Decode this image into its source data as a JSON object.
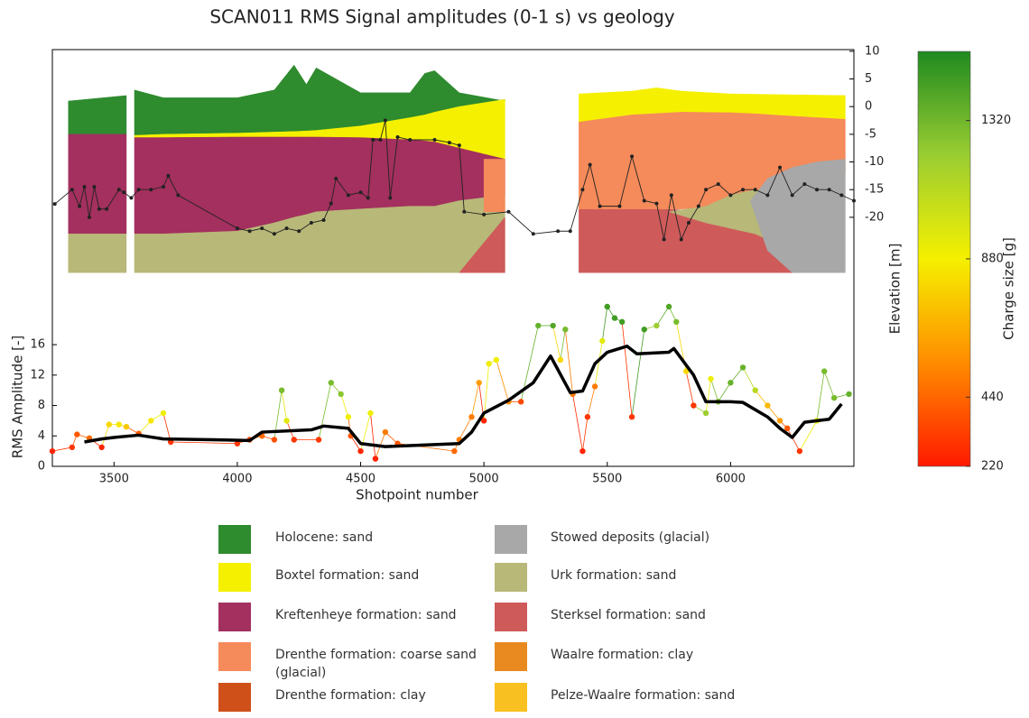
{
  "chart_data": {
    "type": "geology-section",
    "title": "SCAN011 RMS Signal amplitudes (0-1 s) vs geology",
    "xlabel": "Shotpoint number",
    "ylabel": "RMS Amplitude [-]",
    "y2label": "Elevation [m]",
    "colorbar_label": "Charge size [g]",
    "xlim": [
      3250,
      6500
    ],
    "xticks": [
      3500,
      4000,
      4500,
      5000,
      5500,
      6000
    ],
    "ylim": [
      0,
      54.8
    ],
    "yticks": [
      0,
      4,
      8,
      12,
      16
    ],
    "y2lim": [
      -65,
      10.3
    ],
    "y2ticks": [
      10,
      5,
      0,
      -5,
      -10,
      -15,
      -20
    ],
    "clim": [
      220,
      1540
    ],
    "cticks": [
      220,
      440,
      880,
      1320
    ],
    "colormap": [
      "#ff1a00",
      "#ff8c00",
      "#f5f000",
      "#9acd32",
      "#1f8a1f"
    ],
    "geology": [
      {
        "color": "#2e8b2e",
        "x": [
          3315,
          3550
        ],
        "top": [
          1,
          2
        ],
        "bottom": [
          -5,
          -5
        ]
      },
      {
        "color": "#a3305e",
        "x": [
          3315,
          3550
        ],
        "top": [
          -5,
          -5
        ],
        "bottom": [
          -23,
          -23
        ]
      },
      {
        "color": "#b8b878",
        "x": [
          3315,
          3550
        ],
        "top": [
          -23,
          -23
        ],
        "bottom": [
          -30,
          -30
        ]
      },
      {
        "color": "#2e8b2e",
        "x": [
          3583,
          3700,
          4000,
          4150,
          4230,
          4280,
          4320,
          4500,
          4700,
          4760,
          4800,
          4900,
          5085
        ],
        "top": [
          3,
          1.6,
          1.6,
          3,
          7.5,
          4,
          7,
          2.5,
          2.5,
          6,
          6.5,
          2.5,
          1
        ],
        "bottom": [
          -5.2,
          -5,
          -4.8,
          -4.6,
          -4.5,
          -4.4,
          -4.3,
          -3.5,
          -2,
          -1.5,
          -1,
          0,
          1.3
        ]
      },
      {
        "color": "#f5f000",
        "x": [
          3583,
          3700,
          4000,
          4150,
          4230,
          4280,
          4320,
          4500,
          4700,
          4760,
          4800,
          4900,
          5085
        ],
        "top": [
          -5.2,
          -5,
          -4.8,
          -4.6,
          -4.5,
          -4.4,
          -4.3,
          -3.5,
          -2,
          -1.5,
          -1,
          0,
          1.3
        ],
        "bottom": [
          -5.6,
          -5.6,
          -5.5,
          -5.5,
          -5.5,
          -5.5,
          -5.5,
          -5.6,
          -6,
          -6.2,
          -6.4,
          -7.5,
          -9.5
        ]
      },
      {
        "color": "#a3305e",
        "x": [
          3583,
          3700,
          4000,
          4150,
          4230,
          4280,
          4320,
          4500,
          4700,
          4760,
          4800,
          4900,
          5085
        ],
        "top": [
          -5.6,
          -5.6,
          -5.5,
          -5.5,
          -5.5,
          -5.5,
          -5.5,
          -5.6,
          -6,
          -6.2,
          -6.4,
          -7.5,
          -9.5
        ],
        "bottom": [
          -23,
          -23,
          -22.5,
          -21,
          -20,
          -19.5,
          -19,
          -18.5,
          -18,
          -18,
          -18,
          -17,
          -16
        ]
      },
      {
        "color": "#b8b878",
        "x": [
          3583,
          3700,
          4000,
          4150,
          4230,
          4280,
          4320,
          4500,
          4700,
          4760,
          4800,
          4900,
          5085
        ],
        "top": [
          -23,
          -23,
          -22.5,
          -21,
          -20,
          -19.5,
          -19,
          -18.5,
          -18,
          -18,
          -18,
          -17,
          -16
        ],
        "bottom": [
          -30,
          -30,
          -30,
          -30,
          -30,
          -30,
          -30,
          -30,
          -30,
          -30,
          -30,
          -30,
          -30
        ]
      },
      {
        "color": "#f58a5a",
        "x": [
          5000,
          5085
        ],
        "top": [
          -9.5,
          -9.5
        ],
        "bottom": [
          -19,
          -19
        ]
      },
      {
        "color": "#cf5a5a",
        "x": [
          4900,
          5085
        ],
        "top": [
          -30,
          -20
        ],
        "bottom": [
          -30,
          -30
        ]
      },
      {
        "color": "#f5f000",
        "x": [
          5385,
          5600,
          5700,
          5800,
          6000,
          6465
        ],
        "top": [
          2.3,
          2.8,
          3.4,
          2.8,
          2.3,
          2
        ],
        "bottom": [
          -2.8,
          -1.5,
          -1.2,
          -1,
          -1.1,
          -2.3
        ]
      },
      {
        "color": "#cf5a5a",
        "x": [
          5385,
          5700,
          6000,
          6200,
          6300
        ],
        "top": [
          -18.5,
          -18.5,
          -19,
          -22,
          -30
        ],
        "bottom": [
          -30,
          -30,
          -30,
          -30,
          -30
        ]
      },
      {
        "color": "#f58a5a",
        "x": [
          5385,
          5600,
          5800,
          6000,
          6100,
          6200,
          6465
        ],
        "top": [
          -2.8,
          -1.5,
          -1,
          -1.1,
          -1.3,
          -1.6,
          -2.3
        ],
        "bottom": [
          -18.5,
          -18.5,
          -18.5,
          -18,
          -17,
          -15,
          -12
        ]
      },
      {
        "color": "#b8b878",
        "x": [
          5750,
          5900,
          6000,
          6100,
          6200,
          6300
        ],
        "top": [
          -19,
          -18,
          -16,
          -15,
          -17,
          -30
        ],
        "bottom": [
          -19,
          -21,
          -22,
          -23,
          -25,
          -30
        ]
      },
      {
        "color": "#a8a8a8",
        "x": [
          6080,
          6150,
          6250,
          6350,
          6465
        ],
        "top": [
          -17,
          -13,
          -11,
          -10,
          -9.5
        ],
        "bottom": [
          -17,
          -26,
          -30,
          -30,
          -30
        ]
      }
    ],
    "elevation_series": {
      "color": "#222222",
      "axis": "y2",
      "x": [
        3260,
        3330,
        3360,
        3380,
        3400,
        3420,
        3440,
        3470,
        3520,
        3540,
        3570,
        3600,
        3650,
        3700,
        3720,
        3760,
        4000,
        4050,
        4100,
        4150,
        4200,
        4250,
        4300,
        4350,
        4380,
        4400,
        4450,
        4500,
        4530,
        4550,
        4580,
        4600,
        4620,
        4650,
        4700,
        4800,
        4860,
        4900,
        4920,
        5000,
        5100,
        5200,
        5300,
        5350,
        5400,
        5430,
        5470,
        5550,
        5600,
        5650,
        5700,
        5730,
        5760,
        5800,
        5830,
        5870,
        5900,
        5950,
        6000,
        6050,
        6100,
        6150,
        6200,
        6250,
        6300,
        6350,
        6400,
        6450,
        6500
      ],
      "values": [
        -17.6,
        -15,
        -18,
        -14.5,
        -20,
        -14.5,
        -18.5,
        -18.5,
        -15,
        -15.5,
        -16.5,
        -15,
        -15,
        -14.5,
        -12.5,
        -16,
        -22,
        -22.5,
        -22,
        -23,
        -22,
        -22.5,
        -21,
        -20.5,
        -17.5,
        -13,
        -16,
        -15.5,
        -16.5,
        -6,
        -6,
        -2.5,
        -16.5,
        -5.5,
        -6,
        -6,
        -6.5,
        -7,
        -19,
        -19.5,
        -19,
        -23,
        -22.5,
        -22.5,
        -15,
        -10.5,
        -18,
        -18,
        -9,
        -17,
        -17.5,
        -24,
        -16,
        -24,
        -21,
        -18,
        -15,
        -14,
        -16,
        -15,
        -15,
        -16,
        -11,
        -16,
        -14,
        -15,
        -15,
        -16,
        -17
      ]
    },
    "rms_points": {
      "x": [
        3250,
        3330,
        3350,
        3400,
        3450,
        3480,
        3520,
        3550,
        3600,
        3650,
        3700,
        3730,
        4000,
        4050,
        4100,
        4150,
        4180,
        4200,
        4230,
        4330,
        4380,
        4420,
        4450,
        4460,
        4500,
        4540,
        4560,
        4600,
        4650,
        4880,
        4900,
        4950,
        4980,
        5000,
        5020,
        5050,
        5100,
        5150,
        5220,
        5280,
        5310,
        5330,
        5360,
        5400,
        5420,
        5450,
        5480,
        5500,
        5530,
        5560,
        5600,
        5650,
        5700,
        5750,
        5780,
        5820,
        5850,
        5900,
        5920,
        5950,
        6000,
        6050,
        6100,
        6150,
        6200,
        6230,
        6280,
        6350,
        6380,
        6420,
        6480
      ],
      "values": [
        2.0,
        2.5,
        4.2,
        3.7,
        2.5,
        5.5,
        5.5,
        5.2,
        4.3,
        6.0,
        7.0,
        3.2,
        3.0,
        3.5,
        4.0,
        3.5,
        10,
        6,
        3.5,
        3.5,
        11,
        9.5,
        6.5,
        4.0,
        2.0,
        7,
        1.0,
        4.5,
        3.0,
        2.0,
        3.5,
        6.5,
        11,
        6,
        13.5,
        14,
        8.5,
        8.5,
        18.5,
        18.5,
        14,
        18,
        9.5,
        2.0,
        6.5,
        10.5,
        16.5,
        21,
        19.5,
        19,
        6.5,
        18,
        18.5,
        21,
        19,
        12.5,
        8,
        7,
        11.5,
        8.5,
        11,
        13,
        10,
        8,
        6,
        5,
        2,
        6,
        12.5,
        9,
        9.5
      ],
      "charge": [
        250,
        300,
        400,
        450,
        250,
        800,
        850,
        750,
        400,
        850,
        900,
        300,
        300,
        350,
        450,
        380,
        1300,
        950,
        300,
        300,
        1300,
        1250,
        900,
        400,
        250,
        900,
        250,
        500,
        400,
        450,
        500,
        500,
        600,
        250,
        900,
        900,
        550,
        350,
        1350,
        1400,
        800,
        1300,
        500,
        250,
        300,
        500,
        950,
        1450,
        1450,
        1450,
        300,
        1450,
        1200,
        1400,
        1300,
        800,
        300,
        1200,
        900,
        1300,
        1350,
        1350,
        1100,
        700,
        600,
        400,
        300,
        900,
        1300,
        1300,
        1350
      ]
    },
    "rms_trend": {
      "color": "#000000",
      "x": [
        3380,
        3450,
        3500,
        3600,
        3700,
        3900,
        4050,
        4100,
        4300,
        4350,
        4450,
        4500,
        4600,
        4900,
        4950,
        5000,
        5100,
        5200,
        5270,
        5350,
        5400,
        5450,
        5500,
        5580,
        5620,
        5750,
        5770,
        5850,
        5900,
        6000,
        6050,
        6150,
        6200,
        6250,
        6300,
        6400,
        6450
      ],
      "values": [
        3.2,
        3.6,
        3.8,
        4.1,
        3.6,
        3.5,
        3.4,
        4.5,
        4.8,
        5.3,
        5.0,
        3.0,
        2.6,
        3.0,
        4.5,
        7.0,
        8.7,
        11.0,
        14.5,
        9.7,
        9.9,
        13.5,
        15.0,
        15.8,
        14.8,
        15.0,
        15.5,
        12.0,
        8.5,
        8.5,
        8.4,
        6.5,
        5.0,
        3.8,
        5.8,
        6.2,
        8.2
      ]
    },
    "legend": [
      {
        "label": "Holocene: sand",
        "color": "#2e8b2e"
      },
      {
        "label": "Boxtel formation: sand",
        "color": "#f5f000"
      },
      {
        "label": "Kreftenheye formation: sand",
        "color": "#a3305e"
      },
      {
        "label": "Drenthe formation: coarse sand (glacial)",
        "color": "#f58a5a"
      },
      {
        "label": "Drenthe formation: clay",
        "color": "#d0501a"
      },
      {
        "label": "Stowed deposits (glacial)",
        "color": "#a8a8a8"
      },
      {
        "label": "Urk formation: sand",
        "color": "#b8b878"
      },
      {
        "label": "Sterksel formation: sand",
        "color": "#cf5a5a"
      },
      {
        "label": "Waalre formation: clay",
        "color": "#e88a20"
      },
      {
        "label": "Pelze-Waalre formation: sand",
        "color": "#f8c020"
      }
    ]
  }
}
